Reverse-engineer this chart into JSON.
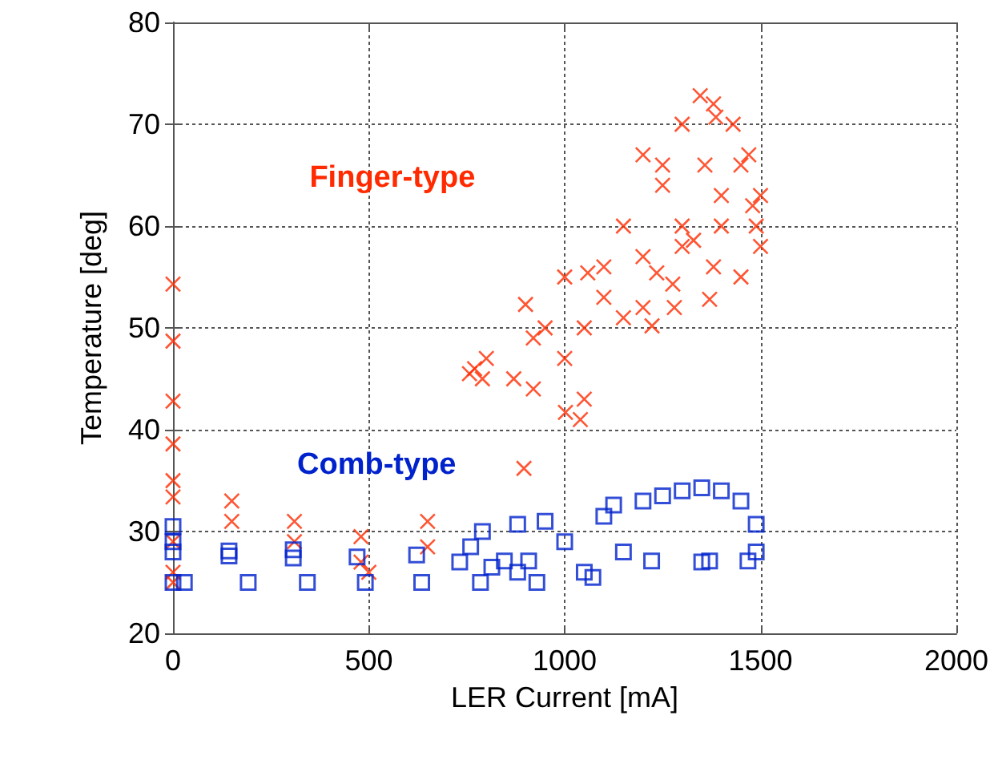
{
  "chart_data": {
    "type": "scatter",
    "xlabel": "LER Current [mA]",
    "ylabel": "Temperature [deg]",
    "xlim": [
      0,
      2000
    ],
    "xticks": [
      0,
      500,
      1000,
      1500,
      2000
    ],
    "ylim": [
      20,
      80
    ],
    "yticks": [
      20,
      30,
      40,
      50,
      60,
      70,
      80
    ],
    "grid": true,
    "legend": false,
    "series": [
      {
        "name": "Finger-type",
        "color": "#ff2a00",
        "marker": "cross",
        "x": [
          0,
          0,
          0,
          0,
          0,
          0,
          0,
          0,
          0,
          150,
          150,
          310,
          310,
          480,
          480,
          500,
          650,
          650,
          757,
          770,
          790,
          800,
          870,
          896,
          900,
          920,
          920,
          950,
          1000,
          1000,
          1002,
          1040,
          1050,
          1050,
          1059,
          1100,
          1100,
          1150,
          1150,
          1200,
          1200,
          1200,
          1223,
          1235,
          1250,
          1250,
          1276,
          1280,
          1300,
          1300,
          1300,
          1329,
          1346,
          1358,
          1370,
          1380,
          1380,
          1386,
          1400,
          1400,
          1430,
          1450,
          1450,
          1470,
          1480,
          1489,
          1500,
          1500
        ],
        "values": [
          54.3,
          48.7,
          42.8,
          38.6,
          35,
          33.4,
          29,
          26,
          25,
          33,
          31,
          31,
          29,
          29.5,
          27,
          26,
          31,
          28.5,
          45.5,
          46,
          45,
          47,
          45,
          36.2,
          52.3,
          49,
          44,
          50,
          47,
          55,
          41.7,
          41,
          50,
          43,
          55.4,
          53,
          56,
          51,
          60,
          52,
          57,
          67,
          50.2,
          55.4,
          64,
          66,
          54.3,
          52,
          60,
          58,
          70,
          58.6,
          72.8,
          66,
          52.8,
          56,
          72,
          70.7,
          63,
          60,
          70,
          66,
          55,
          67,
          62,
          60,
          63,
          58
        ]
      },
      {
        "name": "Comb-type",
        "color": "#0022cc",
        "marker": "square",
        "x": [
          0,
          0,
          0,
          0,
          29,
          143,
          143,
          192,
          307,
          307,
          343,
          470,
          491,
          622,
          635,
          732,
          760,
          785,
          790,
          814,
          846,
          880,
          880,
          908,
          929,
          950,
          1000,
          1050,
          1072,
          1100,
          1125,
          1150,
          1200,
          1222,
          1250,
          1300,
          1350,
          1350,
          1370,
          1400,
          1450,
          1468,
          1489,
          1489
        ],
        "values": [
          30.5,
          29,
          28,
          25,
          25,
          28.1,
          27.6,
          25,
          28.2,
          27.4,
          25,
          27.5,
          25,
          27.7,
          25,
          27,
          28.5,
          25,
          30,
          26.5,
          27.1,
          30.7,
          26,
          27.1,
          25,
          31,
          29,
          26,
          25.5,
          31.5,
          32.6,
          28,
          33,
          27.1,
          33.5,
          34,
          34.3,
          27,
          27.1,
          34,
          33,
          27.1,
          30.7,
          28
        ]
      }
    ]
  }
}
